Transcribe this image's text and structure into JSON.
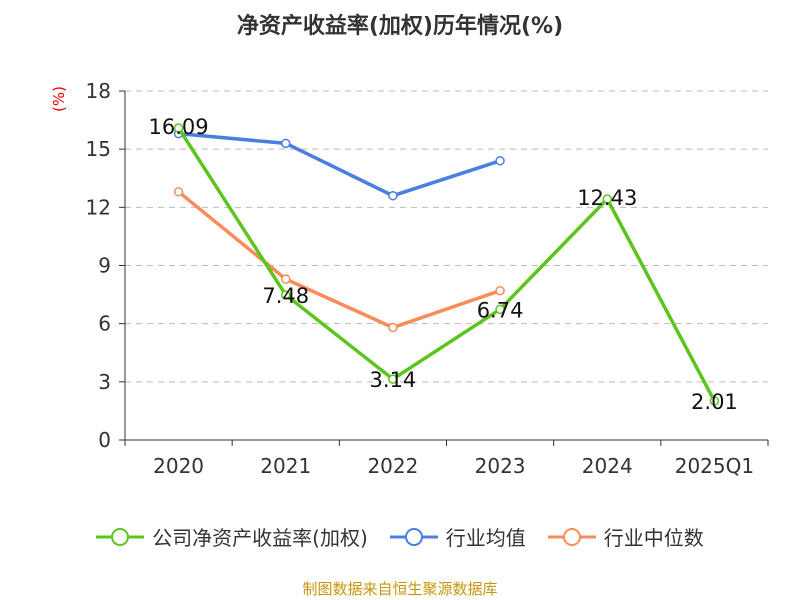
{
  "title": "净资产收益率(加权)历年情况(%)",
  "source": "制图数据来自恒生聚源数据库",
  "chart_data": {
    "type": "line",
    "title": "净资产收益率(加权)历年情况(%)",
    "ylabel": "(%)",
    "ylim": [
      0,
      18
    ],
    "yticks": [
      0,
      3,
      6,
      9,
      12,
      15,
      18
    ],
    "categories": [
      "2020",
      "2021",
      "2022",
      "2023",
      "2024",
      "2025Q1"
    ],
    "grid": true,
    "legend": "bottom",
    "series": [
      {
        "name": "公司净资产收益率(加权)",
        "color": "#5cc41e",
        "values": [
          16.09,
          7.48,
          3.14,
          6.74,
          12.43,
          2.01
        ],
        "labels": [
          "16.09",
          "7.48",
          "3.14",
          "6.74",
          "12.43",
          "2.01"
        ]
      },
      {
        "name": "行业均值",
        "color": "#4a7fe0",
        "values": [
          15.8,
          15.3,
          12.6,
          14.4,
          null,
          null
        ]
      },
      {
        "name": "行业中位数",
        "color": "#f98c58",
        "values": [
          12.8,
          8.3,
          5.8,
          7.7,
          null,
          null
        ]
      }
    ]
  }
}
